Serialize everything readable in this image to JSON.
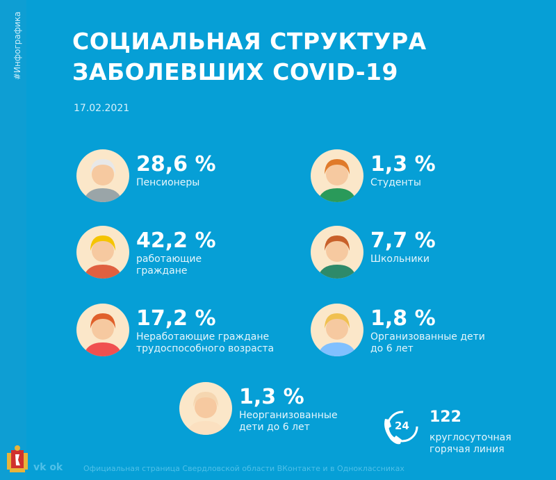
{
  "side_tag": "#Инфографика",
  "title": {
    "line1": "СОЦИАЛЬНАЯ СТРУКТУРА",
    "line2": "ЗАБОЛЕВШИХ COVID-19"
  },
  "date": "17.02.2021",
  "items": [
    {
      "percent": "28,6 %",
      "label1": "Пенсионеры",
      "label2": "",
      "icon": "pensioner-icon"
    },
    {
      "percent": "1,3 %",
      "label1": "Студенты",
      "label2": "",
      "icon": "student-icon"
    },
    {
      "percent": "42,2 %",
      "label1": "работающие",
      "label2": "граждане",
      "icon": "worker-icon"
    },
    {
      "percent": "7,7 %",
      "label1": "Школьники",
      "label2": "",
      "icon": "schoolchild-icon"
    },
    {
      "percent": "17,2 %",
      "label1": "Неработающие граждане",
      "label2": "трудоспособного возраста",
      "icon": "unemployed-icon"
    },
    {
      "percent": "1,8 %",
      "label1": "Организованные дети",
      "label2": "до 6 лет",
      "icon": "kindergarten-children-icon"
    },
    {
      "percent": "1,3 %",
      "label1": "Неорганизованные",
      "label2": "дети до 6 лет",
      "icon": "baby-icon"
    }
  ],
  "hotline": {
    "badge": "24",
    "number": "122",
    "label1": "круглосуточная",
    "label2": "горячая линия"
  },
  "footer": {
    "social": "vk ok",
    "text": "Официальная страница Свердловской области ВКонтакте и в Одноклассниках"
  },
  "colors": {
    "background": "#069fd6",
    "text": "#ffffff",
    "footer_text": "#4fc0e8"
  }
}
